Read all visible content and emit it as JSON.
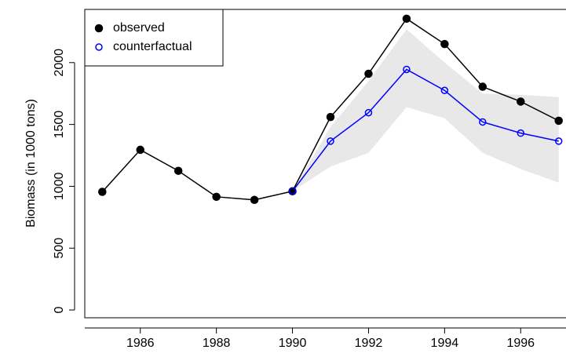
{
  "chart_data": {
    "type": "line",
    "y_label": "Biomass (in 1000 tons)",
    "x": [
      1985,
      1986,
      1987,
      1988,
      1989,
      1990,
      1991,
      1992,
      1993,
      1994,
      1995,
      1996,
      1997
    ],
    "series": [
      {
        "name": "observed",
        "color": "#000000",
        "marker": "filled",
        "values": [
          955,
          1295,
          1125,
          915,
          890,
          960,
          1560,
          1910,
          2355,
          2150,
          1805,
          1685,
          1530
        ]
      },
      {
        "name": "counterfactual",
        "color": "#0000ff",
        "marker": "open",
        "values": [
          null,
          null,
          null,
          null,
          null,
          960,
          1365,
          1595,
          1945,
          1775,
          1520,
          1430,
          1365
        ]
      }
    ],
    "band": {
      "color": "#e8e8e8",
      "x": [
        1990,
        1991,
        1992,
        1993,
        1994,
        1995,
        1996,
        1997
      ],
      "lower": [
        960,
        1160,
        1270,
        1640,
        1550,
        1270,
        1140,
        1030
      ],
      "upper": [
        960,
        1480,
        1850,
        2270,
        2000,
        1750,
        1740,
        1720
      ]
    },
    "xlim": [
      1984.54,
      1997.46
    ],
    "ylim": [
      -63,
      2430
    ],
    "xticks": [
      1986,
      1988,
      1990,
      1992,
      1994,
      1996
    ],
    "yticks": [
      0,
      500,
      1000,
      1500,
      2000
    ],
    "legend": "top-left"
  }
}
